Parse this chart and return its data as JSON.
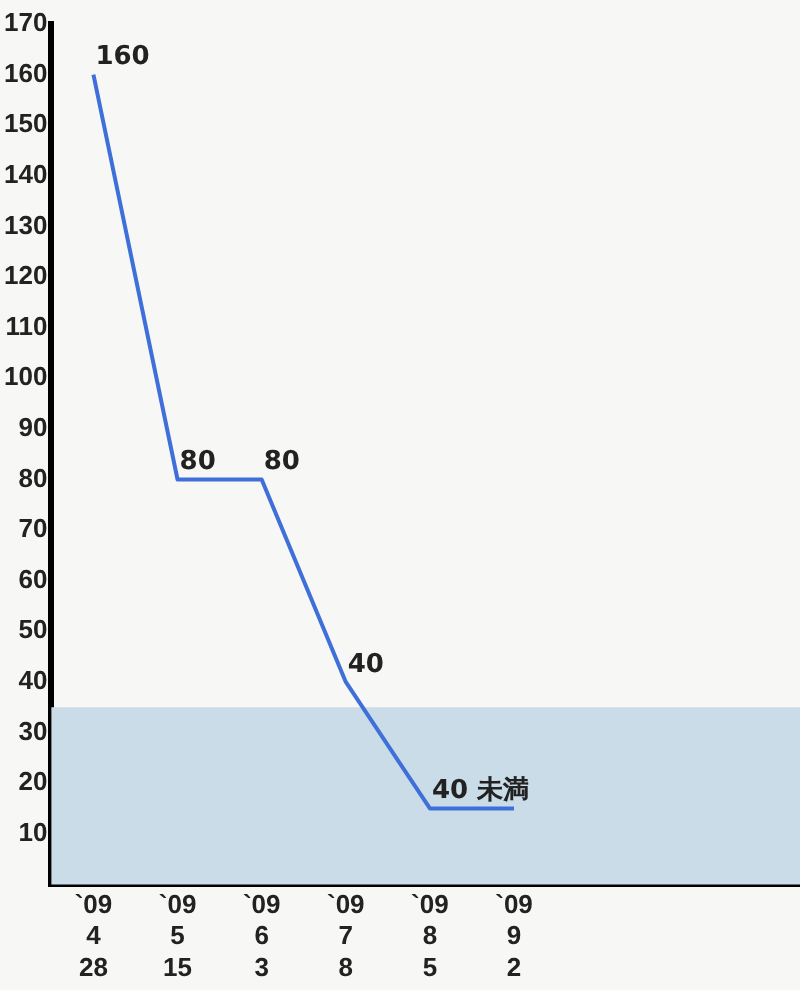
{
  "chart_data": {
    "type": "line",
    "categories": [
      "`09\n4\n28",
      "`09\n5\n15",
      "`09\n6\n3",
      "`09\n7\n8",
      "`09\n8\n5",
      "`09\n9\n2"
    ],
    "series": [
      {
        "color": "#3f6fd8",
        "values": [
          160,
          80,
          80,
          40,
          15,
          15
        ],
        "value_labels": [
          "160",
          "80",
          "80",
          "40",
          null,
          null
        ]
      }
    ],
    "annotations": [
      {
        "text": "40 未満",
        "x": "`09\n8\n5",
        "y": 15
      }
    ],
    "ylim": [
      0,
      170
    ],
    "yticks": [
      10,
      20,
      30,
      40,
      50,
      60,
      70,
      80,
      90,
      100,
      110,
      120,
      130,
      140,
      150,
      160,
      170
    ],
    "bands": [
      {
        "axis": "y",
        "from": 0,
        "to": 35,
        "color": "#c9dce8"
      }
    ],
    "grid": false,
    "legend": false,
    "marker": "none",
    "line_style": "solid"
  }
}
